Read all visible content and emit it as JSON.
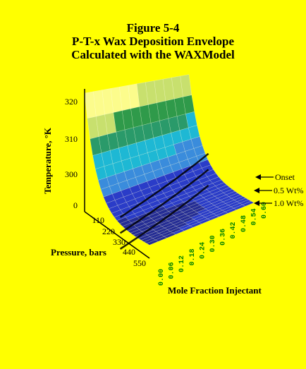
{
  "figure": {
    "title_lines": [
      "Figure 5-4",
      "P-T-x Wax Deposition Envelope",
      "Calculated with the WAXModel"
    ]
  },
  "colors": {
    "background": "#ffff00",
    "surface_bands": [
      "#fcfc8c",
      "#c8e06e",
      "#2f9a4a",
      "#2a9a6a",
      "#1eb8d4",
      "#3a8cdc",
      "#2a3cc8",
      "#242c94"
    ],
    "x_tick_color": "#008000",
    "mesh_line": "#ffffff",
    "envelope_lines": "#000000"
  },
  "chart_data": {
    "type": "surface",
    "ylabel": "Temperature, °K",
    "xlabel": "Pressure, bars",
    "zlabel": "Mole Fraction Injectant",
    "temperature_ticks": [
      "320",
      "310",
      "300",
      "0"
    ],
    "pressure_ticks": [
      "110",
      "220",
      "330",
      "440",
      "550"
    ],
    "fraction_ticks": [
      "0.00",
      "0.06",
      "0.12",
      "0.18",
      "0.24",
      "0.30",
      "0.36",
      "0.42",
      "0.48",
      "0.54",
      "0.60"
    ],
    "legend_labels": [
      "Onset",
      "0.5 Wt%",
      "1.0 Wt%"
    ],
    "grid": false
  }
}
